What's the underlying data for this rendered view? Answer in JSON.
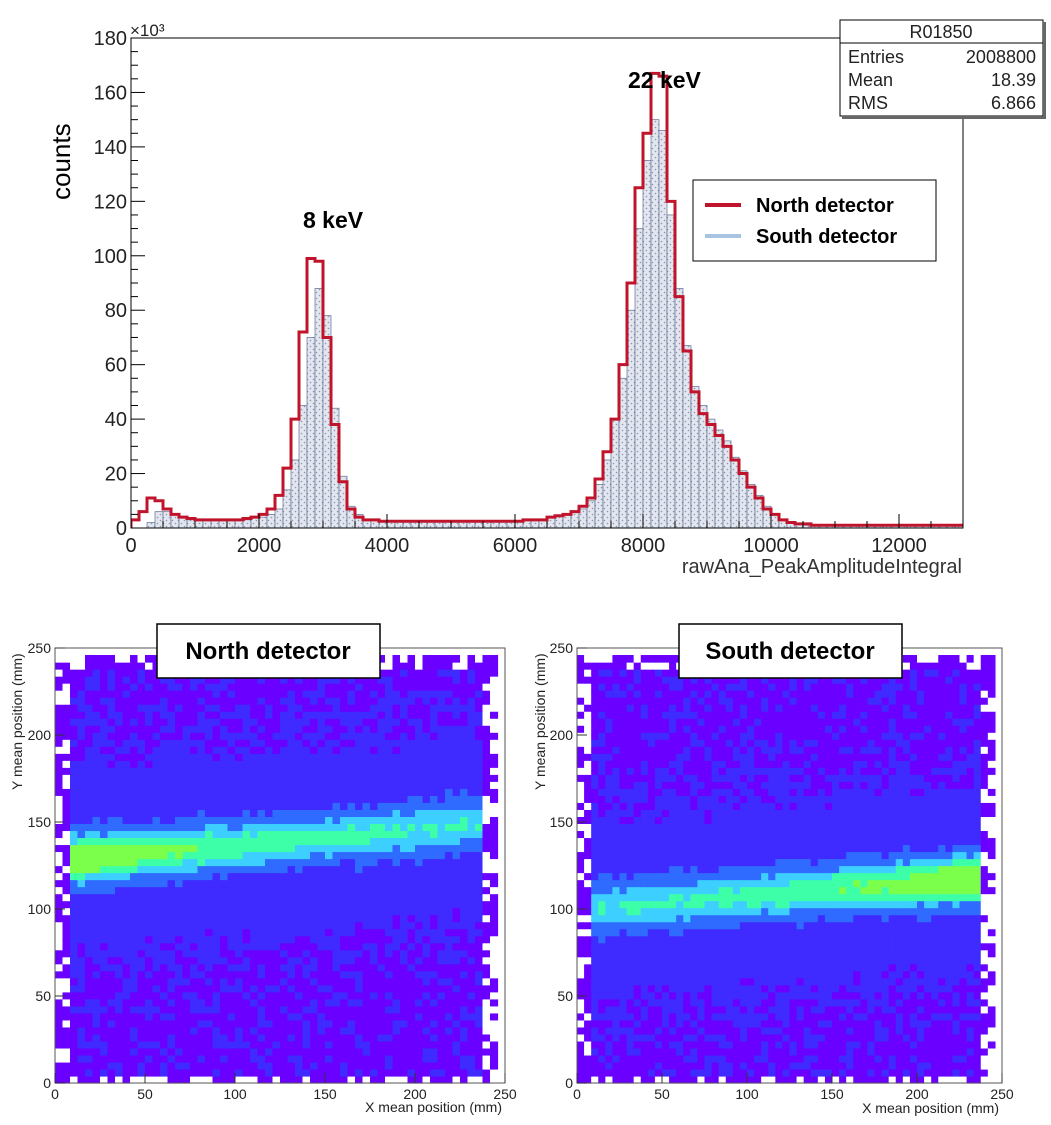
{
  "colors": {
    "north": "#c0142c",
    "south": "#a8c4e0",
    "south_fill": "#dde2ea",
    "frame": "#000000"
  },
  "chart_data": [
    {
      "type": "histogram",
      "title": "",
      "exponent_label": "×10³",
      "ylabel": "counts",
      "xlabel": "rawAna_PeakAmplitudeIntegral",
      "xlim": [
        0,
        13000
      ],
      "ylim": [
        0,
        180
      ],
      "x_ticks": [
        "0",
        "2000",
        "4000",
        "6000",
        "8000",
        "10000",
        "12000"
      ],
      "y_ticks": [
        "0",
        "20",
        "40",
        "60",
        "80",
        "100",
        "120",
        "140",
        "160",
        "180"
      ],
      "bin_width": 125,
      "stats": {
        "title": "R01850",
        "rows": [
          {
            "label": "Entries",
            "value": "2008800"
          },
          {
            "label": "Mean",
            "value": "18.39"
          },
          {
            "label": "RMS",
            "value": "6.866"
          }
        ]
      },
      "legend": [
        "North detector",
        "South detector"
      ],
      "annotations": [
        {
          "text": "8 keV",
          "x": 2650,
          "y": 108
        },
        {
          "text": "22 keV",
          "x": 7850,
          "y": 163
        }
      ],
      "series": [
        {
          "name": "North detector",
          "values": [
            3,
            6,
            11,
            10,
            7,
            5,
            4,
            3.5,
            3,
            3,
            3,
            3,
            3,
            3,
            3.5,
            4,
            5,
            7,
            12,
            22,
            40,
            72,
            99,
            98,
            70,
            38,
            17,
            7,
            4,
            3,
            3,
            2.5,
            2.5,
            2.5,
            2.5,
            2.5,
            2.5,
            2.5,
            2.5,
            2.5,
            2.5,
            2.5,
            2.5,
            2.5,
            2.5,
            2.5,
            2.5,
            2.5,
            2.5,
            3,
            3,
            3,
            4,
            4.5,
            5,
            6,
            8,
            11,
            18,
            28,
            40,
            60,
            90,
            125,
            145,
            167,
            166,
            120,
            85,
            65,
            50,
            42,
            38,
            34,
            30,
            25,
            20,
            15,
            11,
            7,
            5,
            3,
            2,
            1.5,
            1.5,
            1,
            1,
            1,
            1,
            1,
            1,
            1,
            1,
            1,
            1,
            1,
            1,
            1,
            1,
            1,
            1,
            1,
            1,
            1,
            1
          ],
          "color": "#c0142c"
        },
        {
          "name": "South detector",
          "values": [
            0,
            0,
            2,
            6,
            6,
            5,
            4,
            3,
            3,
            3,
            3,
            3,
            3,
            3,
            3,
            4,
            4,
            5,
            7,
            14,
            25,
            45,
            70,
            88,
            78,
            44,
            19,
            8,
            5,
            3,
            3,
            2.5,
            2.5,
            2.5,
            2.5,
            2.5,
            2.5,
            2.5,
            2.5,
            2.5,
            2.5,
            2.5,
            2.5,
            2.5,
            2.5,
            2.5,
            2.5,
            2.5,
            2.5,
            3,
            3,
            3,
            4,
            4.5,
            5,
            6,
            7,
            10,
            16,
            25,
            40,
            55,
            80,
            110,
            135,
            150,
            146,
            115,
            88,
            67,
            52,
            45,
            40,
            36,
            32,
            26,
            21,
            16,
            12,
            8,
            5,
            3,
            2,
            1.5,
            1,
            1,
            1,
            1,
            1,
            1,
            1,
            1,
            1,
            1,
            1,
            1,
            1,
            1,
            1,
            1,
            1,
            1,
            1,
            1,
            1
          ],
          "color": "#a8c4e0"
        }
      ]
    },
    {
      "type": "heatmap",
      "title": "North detector",
      "xlabel": "X mean position (mm)",
      "ylabel": "Y mean position (mm)",
      "xlim": [
        0,
        250
      ],
      "ylim": [
        0,
        250
      ],
      "x_ticks": [
        "0",
        "50",
        "100",
        "150",
        "200",
        "250"
      ],
      "y_ticks": [
        "0",
        "50",
        "100",
        "150",
        "200",
        "250"
      ],
      "band": {
        "start": [
          5,
          128
        ],
        "end": [
          245,
          150
        ],
        "peak_x": 5
      },
      "colormap": [
        "#6a00ff",
        "#3f2bff",
        "#2f6bff",
        "#3ccfff",
        "#3dffa8",
        "#7cff4a"
      ]
    },
    {
      "type": "heatmap",
      "title": "South detector",
      "xlabel": "X mean position (mm)",
      "ylabel": "Y mean position (mm)",
      "xlim": [
        0,
        250
      ],
      "ylim": [
        0,
        250
      ],
      "x_ticks": [
        "0",
        "50",
        "100",
        "150",
        "200",
        "250"
      ],
      "y_ticks": [
        "0",
        "50",
        "100",
        "150",
        "200",
        "250"
      ],
      "band": {
        "start": [
          5,
          100
        ],
        "end": [
          240,
          118
        ],
        "peak_x": 240
      },
      "colormap": [
        "#6a00ff",
        "#3f2bff",
        "#2f6bff",
        "#3ccfff",
        "#3dffa8",
        "#7cff4a"
      ]
    }
  ]
}
